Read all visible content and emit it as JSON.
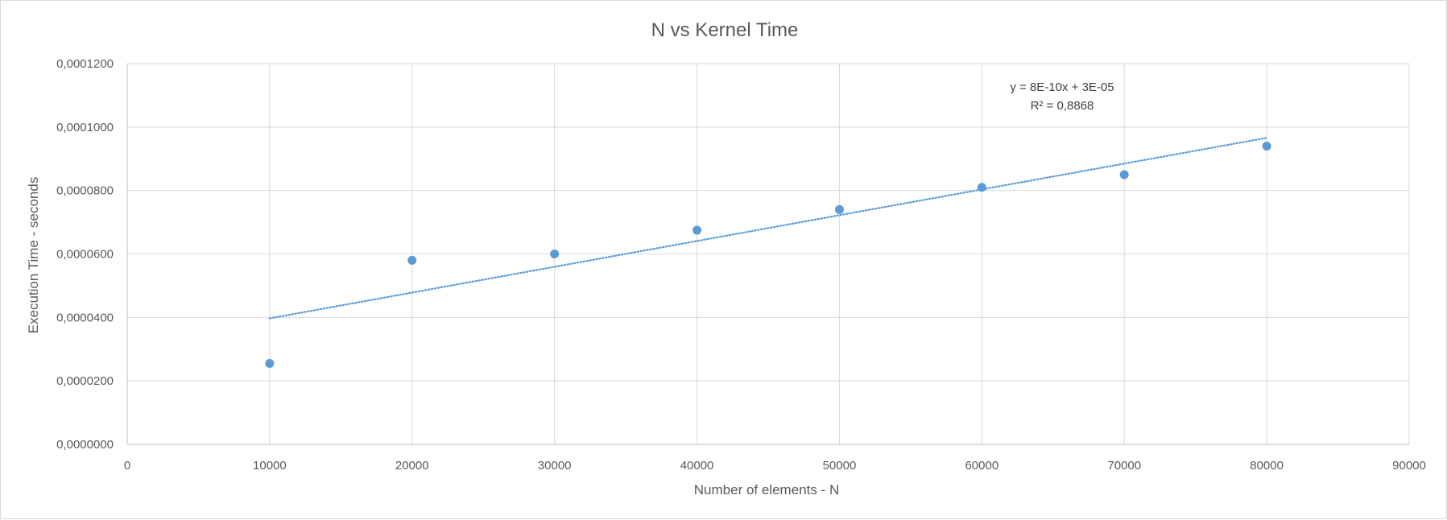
{
  "chart_data": {
    "type": "scatter",
    "title": "N vs Kernel Time",
    "xlabel": "Number of elements - N",
    "ylabel": "Execution Time - seconds",
    "xlim": [
      0,
      90000
    ],
    "ylim": [
      0,
      0.00012
    ],
    "x_ticks": [
      "0",
      "10000",
      "20000",
      "30000",
      "40000",
      "50000",
      "60000",
      "70000",
      "80000",
      "90000"
    ],
    "y_ticks": [
      "0,0000000",
      "0,0000200",
      "0,0000400",
      "0,0000600",
      "0,0000800",
      "0,0001000",
      "0,0001200"
    ],
    "grid": true,
    "series": [
      {
        "color": "#5b9bd5",
        "points": [
          {
            "x": 10000,
            "y": 2.55e-05
          },
          {
            "x": 20000,
            "y": 5.8e-05
          },
          {
            "x": 30000,
            "y": 6e-05
          },
          {
            "x": 40000,
            "y": 6.75e-05
          },
          {
            "x": 50000,
            "y": 7.4e-05
          },
          {
            "x": 60000,
            "y": 8.1e-05
          },
          {
            "x": 70000,
            "y": 8.5e-05
          },
          {
            "x": 80000,
            "y": 9.4e-05
          }
        ]
      }
    ],
    "trendline": {
      "type": "linear",
      "style": "dotted",
      "color": "#5b9bd5",
      "x_start": 10000,
      "x_end": 80000,
      "y_start": 3.97e-05,
      "y_end": 9.66e-05,
      "equation": "y = 8E-10x + 3E-05",
      "r_squared": "R² = 0,8868"
    }
  }
}
